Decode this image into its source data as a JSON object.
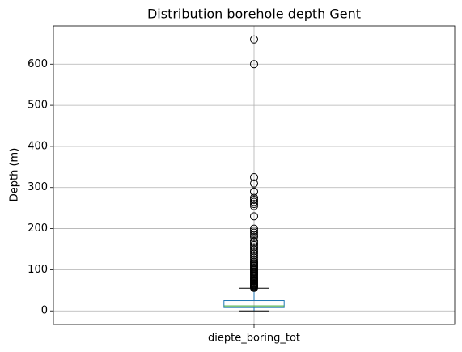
{
  "chart_data": {
    "type": "box",
    "title": "Distribution borehole depth Gent",
    "y_label": "Depth (m)",
    "categories": [
      "diepte_boring_tot"
    ],
    "boxes": [
      {
        "whislo": 0,
        "q1": 8,
        "med": 12,
        "q3": 25,
        "whishi": 55,
        "fliers": [
          56,
          58,
          60,
          62,
          64,
          66,
          68,
          70,
          72,
          74,
          76,
          78,
          80,
          82,
          85,
          88,
          90,
          93,
          95,
          98,
          100,
          103,
          105,
          108,
          110,
          112,
          115,
          118,
          120,
          125,
          130,
          135,
          140,
          145,
          150,
          155,
          160,
          165,
          170,
          180,
          185,
          190,
          195,
          200,
          230,
          255,
          260,
          265,
          270,
          275,
          290,
          310,
          325,
          600,
          660
        ]
      }
    ],
    "box_color": "#1f77b4",
    "median_color": "#2ca02c",
    "cap_color": "#000000",
    "flier_color": "#000000",
    "ylim": [
      -33,
      693
    ],
    "yticks": [
      0,
      100,
      200,
      300,
      400,
      500,
      600
    ],
    "grid": true
  }
}
